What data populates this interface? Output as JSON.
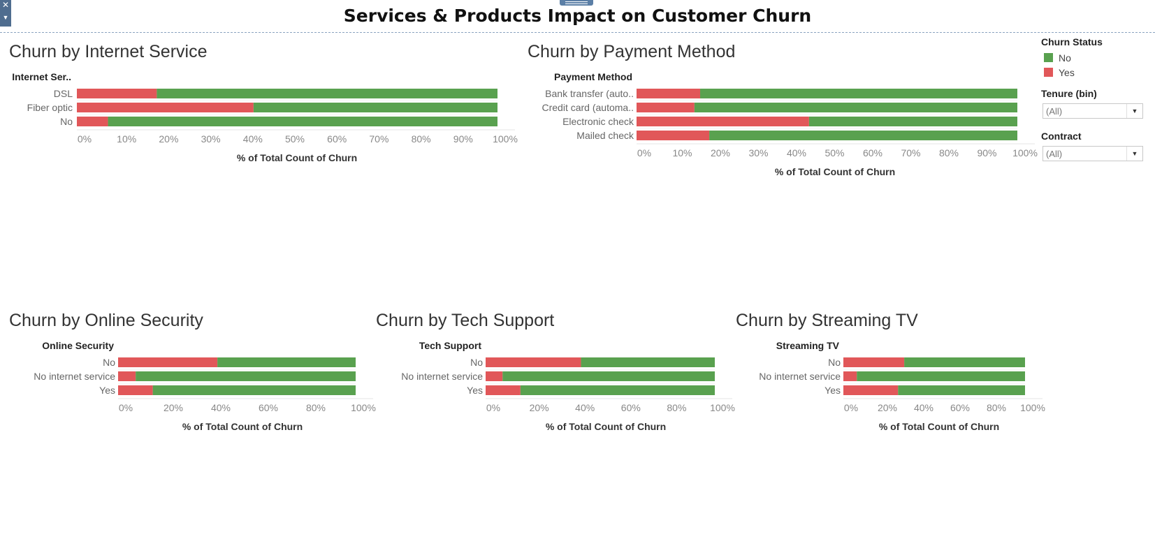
{
  "dashboard": {
    "title": "Services & Products Impact on Customer Churn"
  },
  "colors": {
    "no": "#59a14f",
    "yes": "#e15759"
  },
  "legend": {
    "title": "Churn Status",
    "items": [
      {
        "label": "No",
        "color": "#59a14f"
      },
      {
        "label": "Yes",
        "color": "#e15759"
      }
    ]
  },
  "filters": {
    "tenure": {
      "label": "Tenure (bin)",
      "value": "(All)"
    },
    "contract": {
      "label": "Contract",
      "value": "(All)"
    }
  },
  "chart_data": [
    {
      "type": "bar",
      "stacked": true,
      "title": "Churn by Internet Service",
      "dimension": "Internet Ser..",
      "categories": [
        "DSL",
        "Fiber optic",
        "No"
      ],
      "series": [
        {
          "name": "Yes",
          "values": [
            19,
            42,
            7.4
          ]
        },
        {
          "name": "No",
          "values": [
            81,
            58,
            92.6
          ]
        }
      ],
      "xlabel": "% of Total Count of Churn",
      "ticks": [
        "0%",
        "10%",
        "20%",
        "30%",
        "40%",
        "50%",
        "60%",
        "70%",
        "80%",
        "90%",
        "100%"
      ],
      "xlim": [
        0,
        100
      ]
    },
    {
      "type": "bar",
      "stacked": true,
      "title": "Churn by Payment Method",
      "dimension": "Payment Method",
      "categories": [
        "Bank transfer (auto..",
        "Credit card (automa..",
        "Electronic check",
        "Mailed check"
      ],
      "series": [
        {
          "name": "Yes",
          "values": [
            16.7,
            15.2,
            45.3,
            19.1
          ]
        },
        {
          "name": "No",
          "values": [
            83.3,
            84.8,
            54.7,
            80.9
          ]
        }
      ],
      "xlabel": "% of Total Count of Churn",
      "ticks": [
        "0%",
        "10%",
        "20%",
        "30%",
        "40%",
        "50%",
        "60%",
        "70%",
        "80%",
        "90%",
        "100%"
      ],
      "xlim": [
        0,
        100
      ]
    },
    {
      "type": "bar",
      "stacked": true,
      "title": "Churn by Online Security",
      "dimension": "Online Security",
      "categories": [
        "No",
        "No internet service",
        "Yes"
      ],
      "series": [
        {
          "name": "Yes",
          "values": [
            41.8,
            7.4,
            14.6
          ]
        },
        {
          "name": "No",
          "values": [
            58.2,
            92.6,
            85.4
          ]
        }
      ],
      "xlabel": "% of Total Count of Churn",
      "ticks": [
        "0%",
        "20%",
        "40%",
        "60%",
        "80%",
        "100%"
      ],
      "xlim": [
        0,
        100
      ]
    },
    {
      "type": "bar",
      "stacked": true,
      "title": "Churn by Tech Support",
      "dimension": "Tech Support",
      "categories": [
        "No",
        "No internet service",
        "Yes"
      ],
      "series": [
        {
          "name": "Yes",
          "values": [
            41.6,
            7.4,
            15.2
          ]
        },
        {
          "name": "No",
          "values": [
            58.4,
            92.6,
            84.8
          ]
        }
      ],
      "xlabel": "% of Total Count of Churn",
      "ticks": [
        "0%",
        "20%",
        "40%",
        "60%",
        "80%",
        "100%"
      ],
      "xlim": [
        0,
        100
      ]
    },
    {
      "type": "bar",
      "stacked": true,
      "title": "Churn by Streaming TV",
      "dimension": "Streaming TV",
      "categories": [
        "No",
        "No internet service",
        "Yes"
      ],
      "series": [
        {
          "name": "Yes",
          "values": [
            33.5,
            7.4,
            30.1
          ]
        },
        {
          "name": "No",
          "values": [
            66.5,
            92.6,
            69.9
          ]
        }
      ],
      "xlabel": "% of Total Count of Churn",
      "ticks": [
        "0%",
        "20%",
        "40%",
        "60%",
        "80%",
        "100%"
      ],
      "xlim": [
        0,
        100
      ]
    }
  ]
}
